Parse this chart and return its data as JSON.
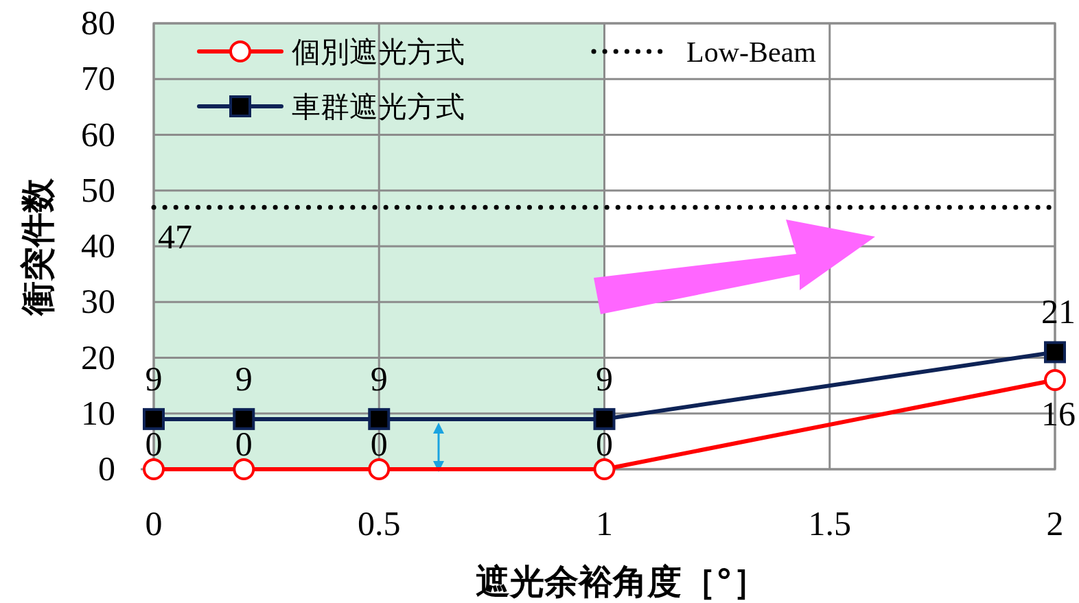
{
  "chart_data": {
    "type": "line",
    "xlabel": "遮光余裕角度［°］",
    "ylabel": "衝突件数",
    "xlim": [
      0,
      2
    ],
    "xticks": [
      0,
      0.5,
      1,
      1.5,
      2
    ],
    "ylim": [
      0,
      80
    ],
    "yticks": [
      0,
      10,
      20,
      30,
      40,
      50,
      60,
      70,
      80
    ],
    "grid": true,
    "legend": "top left",
    "data_labels": true,
    "bands": [
      {
        "axis": "x",
        "from": 0,
        "to": 1,
        "color": "#d3efdf"
      }
    ],
    "series": [
      {
        "name": "個別遮光方式",
        "color": "#ff0000",
        "marker": "circle",
        "x": [
          0,
          0.2,
          0.5,
          1,
          2
        ],
        "values": [
          0,
          0,
          0,
          0,
          16
        ]
      },
      {
        "name": "車群遮光方式",
        "color": "#0e2356",
        "marker": "square",
        "x": [
          0,
          0.2,
          0.5,
          1,
          2
        ],
        "values": [
          9,
          9,
          9,
          9,
          21
        ]
      },
      {
        "name": "Low-Beam",
        "color": "#000000",
        "marker": "none",
        "line_style": "dotted",
        "x": [
          0,
          2
        ],
        "values": [
          47,
          47
        ],
        "value_labels": [
          "47",
          null
        ]
      }
    ]
  }
}
